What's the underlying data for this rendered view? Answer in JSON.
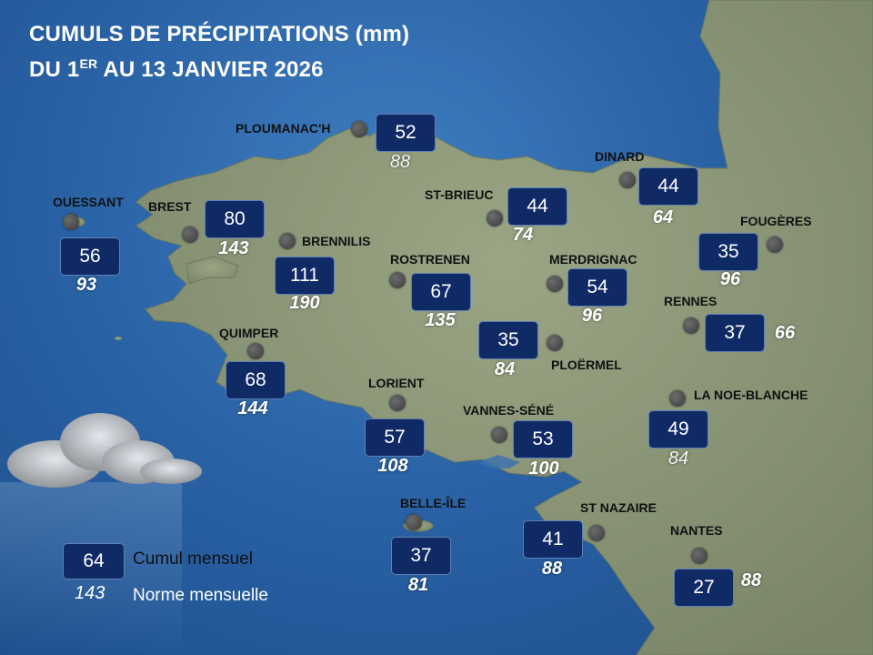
{
  "title": {
    "line1": "CUMULS DE PRÉCIPITATIONS (mm)",
    "line2_prefix": "DU 1",
    "line2_sup": "ER",
    "line2_suffix": " AU 13 JANVIER 2026"
  },
  "legend": {
    "box_value": "64",
    "box_label": "Cumul mensuel",
    "norm_value": "143",
    "norm_label": "Norme mensuelle"
  },
  "colors": {
    "sea": "#2a63a6",
    "land": "#8c9677",
    "box": "#102a66",
    "box_text": "#ffffff"
  },
  "stations": [
    {
      "name": "PLOUMANAC'H",
      "cumul": "52",
      "norme": "88"
    },
    {
      "name": "DINARD",
      "cumul": "44",
      "norme": "64"
    },
    {
      "name": "OUESSANT",
      "cumul": "56",
      "norme": "93"
    },
    {
      "name": "BREST",
      "cumul": "80",
      "norme": "143"
    },
    {
      "name": "BRENNILIS",
      "cumul": "111",
      "norme": "190"
    },
    {
      "name": "ST-BRIEUC",
      "cumul": "44",
      "norme": "74"
    },
    {
      "name": "FOUGÈRES",
      "cumul": "35",
      "norme": "96"
    },
    {
      "name": "ROSTRENEN",
      "cumul": "67",
      "norme": "135"
    },
    {
      "name": "MERDRIGNAC",
      "cumul": "54",
      "norme": "96"
    },
    {
      "name": "RENNES",
      "cumul": "37",
      "norme": "66"
    },
    {
      "name": "PLOËRMEL",
      "cumul": "35",
      "norme": "84"
    },
    {
      "name": "QUIMPER",
      "cumul": "68",
      "norme": "144"
    },
    {
      "name": "LORIENT",
      "cumul": "57",
      "norme": "108"
    },
    {
      "name": "LA NOE-BLANCHE",
      "cumul": "49",
      "norme": "84"
    },
    {
      "name": "VANNES-SÉNÉ",
      "cumul": "53",
      "norme": "100"
    },
    {
      "name": "BELLE-ÎLE",
      "cumul": "37",
      "norme": "81"
    },
    {
      "name": "ST NAZAIRE",
      "cumul": "41",
      "norme": "88"
    },
    {
      "name": "NANTES",
      "cumul": "27",
      "norme": "88"
    }
  ]
}
